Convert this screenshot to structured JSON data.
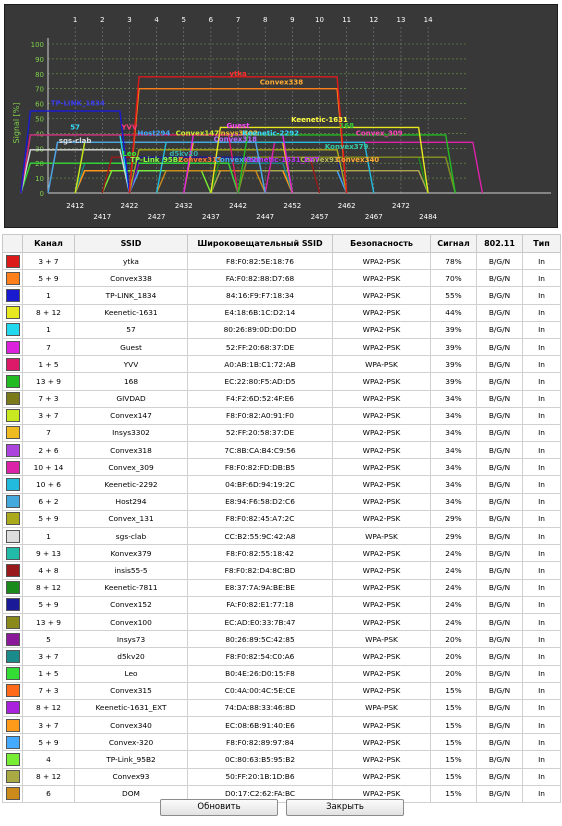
{
  "chart_data": {
    "type": "area",
    "ylabel": "Signal [%]",
    "ylim": [
      0,
      100
    ],
    "y_ticks": [
      0,
      10,
      20,
      30,
      40,
      50,
      60,
      70,
      80,
      90,
      100
    ],
    "top_channel_ticks": [
      1,
      2,
      3,
      4,
      5,
      6,
      7,
      8,
      9,
      10,
      11,
      12,
      13,
      14
    ],
    "bottom_freq_row1": [
      2412,
      2422,
      2432,
      2442,
      2452,
      2462,
      2472
    ],
    "bottom_freq_row2": [
      2417,
      2427,
      2437,
      2447,
      2457,
      2467,
      2484
    ],
    "grid": true,
    "series": [
      {
        "name": "ytka",
        "channel": 7,
        "span": 4,
        "signal": 78,
        "color": "#dd1a1a"
      },
      {
        "name": "Convex338",
        "channel": 7,
        "span": 4,
        "signal": 70,
        "color": "#ff7f1a"
      },
      {
        "name": "TP-LINK_1834",
        "channel": 1,
        "span": 2,
        "signal": 55,
        "color": "#1a1ad0"
      },
      {
        "name": "Keenetic-1631",
        "channel": 10,
        "span": 4,
        "signal": 44,
        "color": "#e8e820"
      },
      {
        "name": "57",
        "channel": 1,
        "span": 2,
        "signal": 39,
        "color": "#22d8ee"
      },
      {
        "name": "Guest",
        "channel": 7,
        "span": 2,
        "signal": 39,
        "color": "#dd22dd"
      },
      {
        "name": "YVV",
        "channel": 3,
        "span": 4,
        "signal": 39,
        "color": "#dd1a6a"
      },
      {
        "name": "168",
        "channel": 11,
        "span": 4,
        "signal": 39,
        "color": "#22bb22"
      },
      {
        "name": "GIVDAD",
        "channel": 5,
        "span": 4,
        "signal": 34,
        "color": "#7a7a1a"
      },
      {
        "name": "Convex147",
        "channel": 5,
        "span": 4,
        "signal": 34,
        "color": "#c8e820"
      },
      {
        "name": "Insys3302",
        "channel": 7,
        "span": 2,
        "signal": 34,
        "color": "#eebb20"
      },
      {
        "name": "Convex318",
        "channel": 4,
        "span": 4,
        "signal": 34,
        "color": "#aa44dd"
      },
      {
        "name": "Convex_309",
        "channel": 12,
        "span": 4,
        "signal": 34,
        "color": "#dd22aa"
      },
      {
        "name": "Keenetic-2292",
        "channel": 8,
        "span": 4,
        "signal": 34,
        "color": "#22bbdd"
      },
      {
        "name": "Host294",
        "channel": 4,
        "span": 4,
        "signal": 34,
        "color": "#44aadd"
      },
      {
        "name": "Convex_131",
        "channel": 7,
        "span": 4,
        "signal": 29,
        "color": "#aaaa1a"
      },
      {
        "name": "sgs-clab",
        "channel": 1,
        "span": 2,
        "signal": 29,
        "color": "#dddddd"
      },
      {
        "name": "Konvex379",
        "channel": 11,
        "span": 4,
        "signal": 24,
        "color": "#22bbaa"
      },
      {
        "name": "insis55-5",
        "channel": 6,
        "span": 4,
        "signal": 24,
        "color": "#991a1a"
      },
      {
        "name": "Keenetic-7811",
        "channel": 10,
        "span": 4,
        "signal": 24,
        "color": "#1a8a1a"
      },
      {
        "name": "Convex152",
        "channel": 7,
        "span": 4,
        "signal": 24,
        "color": "#1a1a99"
      },
      {
        "name": "Convex100",
        "channel": 11,
        "span": 4,
        "signal": 24,
        "color": "#8a8a1a"
      },
      {
        "name": "Insys73",
        "channel": 5,
        "span": 2,
        "signal": 20,
        "color": "#8a1a99"
      },
      {
        "name": "d5kv20",
        "channel": 5,
        "span": 4,
        "signal": 20,
        "color": "#1a8a8a"
      },
      {
        "name": "Leo",
        "channel": 3,
        "span": 4,
        "signal": 20,
        "color": "#33dd33"
      },
      {
        "name": "Convex315",
        "channel": 5,
        "span": 4,
        "signal": 15,
        "color": "#ff6a1a"
      },
      {
        "name": "Keenetic-1631_EXT",
        "channel": 10,
        "span": 4,
        "signal": 15,
        "color": "#aa22dd"
      },
      {
        "name": "Convex340",
        "channel": 5,
        "span": 4,
        "signal": 15,
        "color": "#ff9a1a"
      },
      {
        "name": "Convex-320",
        "channel": 7,
        "span": 4,
        "signal": 15,
        "color": "#44aaff"
      },
      {
        "name": "TP-Link_95B2",
        "channel": 4,
        "span": 2,
        "signal": 15,
        "color": "#77ee33"
      },
      {
        "name": "Convex93",
        "channel": 10,
        "span": 4,
        "signal": 15,
        "color": "#aaaa44"
      },
      {
        "name": "DOM",
        "channel": 6,
        "span": 2,
        "signal": 15,
        "color": "#cc8a1a"
      }
    ],
    "labels": [
      {
        "text": "ytka",
        "channel": 7,
        "signal": 78,
        "color": "#ff3030"
      },
      {
        "text": "Convex338",
        "channel": 8.6,
        "signal": 72,
        "color": "#ffaa33"
      },
      {
        "text": "TP-LINK_1834",
        "channel": 1.1,
        "signal": 58,
        "color": "#3a3aee"
      },
      {
        "text": "Keenetic-1631",
        "channel": 10,
        "signal": 47,
        "color": "#ffff44"
      },
      {
        "text": "57",
        "channel": 1,
        "signal": 42,
        "color": "#33ddff"
      },
      {
        "text": "Guest",
        "channel": 7,
        "signal": 43,
        "color": "#ff44ff"
      },
      {
        "text": "YVV",
        "channel": 3,
        "signal": 42,
        "color": "#ff3a7a"
      },
      {
        "text": "168",
        "channel": 11,
        "signal": 43,
        "color": "#33cc33"
      },
      {
        "text": "Host294",
        "channel": 3.9,
        "signal": 38,
        "color": "#44aaff"
      },
      {
        "text": "Convex147",
        "channel": 5.5,
        "signal": 38,
        "color": "#ccee33"
      },
      {
        "text": "Insys3302",
        "channel": 7,
        "signal": 38,
        "color": "#eebb33"
      },
      {
        "text": "Keenetic-2292",
        "channel": 8.2,
        "signal": 38,
        "color": "#33ddff"
      },
      {
        "text": "Convex_309",
        "channel": 12.2,
        "signal": 38,
        "color": "#ff44bb"
      },
      {
        "text": "Convex318",
        "channel": 6.9,
        "signal": 34,
        "color": "#bb66ff"
      },
      {
        "text": "sgs-clab",
        "channel": 1,
        "signal": 33,
        "color": "#dddddd"
      },
      {
        "text": "Konvex379",
        "channel": 11,
        "signal": 29,
        "color": "#33ccaa"
      },
      {
        "text": "Leo",
        "channel": 3,
        "signal": 24,
        "color": "#33ee33"
      },
      {
        "text": "d5kv20",
        "channel": 5,
        "signal": 24,
        "color": "#33aaaa"
      },
      {
        "text": "TP-Link_95B2",
        "channel": 4,
        "signal": 20,
        "color": "#88ff44"
      },
      {
        "text": "Convex315",
        "channel": 5.6,
        "signal": 20,
        "color": "#ff7733"
      },
      {
        "text": "Convex-320",
        "channel": 7,
        "signal": 20,
        "color": "#44aaff"
      },
      {
        "text": "Convex93",
        "channel": 10,
        "signal": 20,
        "color": "#bbbb55"
      },
      {
        "text": "Keenetic-1631_EXT",
        "channel": 8.6,
        "signal": 20,
        "color": "#bb33ff"
      },
      {
        "text": "Convex340",
        "channel": 11.4,
        "signal": 20,
        "color": "#ffaa33"
      }
    ]
  },
  "table": {
    "headers": {
      "channel": "Канал",
      "ssid": "SSID",
      "bssid": "Широковещательный SSID",
      "security": "Безопасность",
      "signal": "Сигнал",
      "standard": "802.11",
      "type": "Тип"
    },
    "rows": [
      {
        "color": "#dd1a1a",
        "channel": "3 + 7",
        "ssid": "ytka",
        "bssid": "F8:F0:82:5E:18:76",
        "security": "WPA2-PSK",
        "signal": "78%",
        "standard": "B/G/N",
        "type": "In"
      },
      {
        "color": "#ff7f1a",
        "channel": "5 + 9",
        "ssid": "Convex338",
        "bssid": "FA:F0:82:88:D7:68",
        "security": "WPA2-PSK",
        "signal": "70%",
        "standard": "B/G/N",
        "type": "In"
      },
      {
        "color": "#1a1ad0",
        "channel": "1",
        "ssid": "TP-LINK_1834",
        "bssid": "84:16:F9:F7:18:34",
        "security": "WPA2-PSK",
        "signal": "55%",
        "standard": "B/G/N",
        "type": "In"
      },
      {
        "color": "#e8e820",
        "channel": "8 + 12",
        "ssid": "Keenetic-1631",
        "bssid": "E4:18:6B:1C:D2:14",
        "security": "WPA2-PSK",
        "signal": "44%",
        "standard": "B/G/N",
        "type": "In"
      },
      {
        "color": "#22d8ee",
        "channel": "1",
        "ssid": "57",
        "bssid": "80:26:89:0D:D0:DD",
        "security": "WPA2-PSK",
        "signal": "39%",
        "standard": "B/G/N",
        "type": "In"
      },
      {
        "color": "#dd22dd",
        "channel": "7",
        "ssid": "Guest",
        "bssid": "52:FF:20:68:37:DE",
        "security": "WPA2-PSK",
        "signal": "39%",
        "standard": "B/G/N",
        "type": "In"
      },
      {
        "color": "#dd1a6a",
        "channel": "1 + 5",
        "ssid": "YVV",
        "bssid": "A0:AB:1B:C1:72:AB",
        "security": "WPA-PSK",
        "signal": "39%",
        "standard": "B/G/N",
        "type": "In"
      },
      {
        "color": "#22bb22",
        "channel": "13 + 9",
        "ssid": "168",
        "bssid": "EC:22:80:F5:AD:D5",
        "security": "WPA2-PSK",
        "signal": "39%",
        "standard": "B/G/N",
        "type": "In"
      },
      {
        "color": "#7a7a1a",
        "channel": "7 + 3",
        "ssid": "GIVDAD",
        "bssid": "F4:F2:6D:52:4F:E6",
        "security": "WPA2-PSK",
        "signal": "34%",
        "standard": "B/G/N",
        "type": "In"
      },
      {
        "color": "#c8e820",
        "channel": "3 + 7",
        "ssid": "Convex147",
        "bssid": "F8:F0:82:A0:91:F0",
        "security": "WPA2-PSK",
        "signal": "34%",
        "standard": "B/G/N",
        "type": "In"
      },
      {
        "color": "#eebb20",
        "channel": "7",
        "ssid": "Insys3302",
        "bssid": "52:FF:20:58:37:DE",
        "security": "WPA2-PSK",
        "signal": "34%",
        "standard": "B/G/N",
        "type": "In"
      },
      {
        "color": "#aa44dd",
        "channel": "2 + 6",
        "ssid": "Convex318",
        "bssid": "7C:8B:CA:B4:C9:56",
        "security": "WPA2-PSK",
        "signal": "34%",
        "standard": "B/G/N",
        "type": "In"
      },
      {
        "color": "#dd22aa",
        "channel": "10 + 14",
        "ssid": "Convex_309",
        "bssid": "F8:F0:82:FD:DB:B5",
        "security": "WPA2-PSK",
        "signal": "34%",
        "standard": "B/G/N",
        "type": "In"
      },
      {
        "color": "#22bbdd",
        "channel": "10 + 6",
        "ssid": "Keenetic-2292",
        "bssid": "04:BF:6D:94:19:2C",
        "security": "WPA2-PSK",
        "signal": "34%",
        "standard": "B/G/N",
        "type": "In"
      },
      {
        "color": "#44aadd",
        "channel": "6 + 2",
        "ssid": "Host294",
        "bssid": "E8:94:F6:58:D2:C6",
        "security": "WPA2-PSK",
        "signal": "34%",
        "standard": "B/G/N",
        "type": "In"
      },
      {
        "color": "#aaaa1a",
        "channel": "5 + 9",
        "ssid": "Convex_131",
        "bssid": "F8:F0:82:45:A7:2C",
        "security": "WPA2-PSK",
        "signal": "29%",
        "standard": "B/G/N",
        "type": "In"
      },
      {
        "color": "#dddddd",
        "channel": "1",
        "ssid": "sgs-clab",
        "bssid": "CC:B2:55:9C:42:A8",
        "security": "WPA-PSK",
        "signal": "29%",
        "standard": "B/G/N",
        "type": "In"
      },
      {
        "color": "#22bbaa",
        "channel": "9 + 13",
        "ssid": "Konvex379",
        "bssid": "F8:F0:82:55:18:42",
        "security": "WPA2-PSK",
        "signal": "24%",
        "standard": "B/G/N",
        "type": "In"
      },
      {
        "color": "#991a1a",
        "channel": "4 + 8",
        "ssid": "insis55-5",
        "bssid": "F8:F0:82:D4:8C:BD",
        "security": "WPA2-PSK",
        "signal": "24%",
        "standard": "B/G/N",
        "type": "In"
      },
      {
        "color": "#1a8a1a",
        "channel": "8 + 12",
        "ssid": "Keenetic-7811",
        "bssid": "E8:37:7A:9A:BE:BE",
        "security": "WPA2-PSK",
        "signal": "24%",
        "standard": "B/G/N",
        "type": "In"
      },
      {
        "color": "#1a1a99",
        "channel": "5 + 9",
        "ssid": "Convex152",
        "bssid": "FA:F0:82:E1:77:18",
        "security": "WPA2-PSK",
        "signal": "24%",
        "standard": "B/G/N",
        "type": "In"
      },
      {
        "color": "#8a8a1a",
        "channel": "13 + 9",
        "ssid": "Convex100",
        "bssid": "EC:AD:E0:33:7B:47",
        "security": "WPA2-PSK",
        "signal": "24%",
        "standard": "B/G/N",
        "type": "In"
      },
      {
        "color": "#8a1a99",
        "channel": "5",
        "ssid": "Insys73",
        "bssid": "80:26:89:5C:42:85",
        "security": "WPA-PSK",
        "signal": "20%",
        "standard": "B/G/N",
        "type": "In"
      },
      {
        "color": "#1a8a8a",
        "channel": "3 + 7",
        "ssid": "d5kv20",
        "bssid": "F8:F0:82:54:C0:A6",
        "security": "WPA2-PSK",
        "signal": "20%",
        "standard": "B/G/N",
        "type": "In"
      },
      {
        "color": "#33dd33",
        "channel": "1 + 5",
        "ssid": "Leo",
        "bssid": "B0:4E:26:D0:15:F8",
        "security": "WPA2-PSK",
        "signal": "20%",
        "standard": "B/G/N",
        "type": "In"
      },
      {
        "color": "#ff6a1a",
        "channel": "7 + 3",
        "ssid": "Convex315",
        "bssid": "C0:4A:00:4C:5E:CE",
        "security": "WPA2-PSK",
        "signal": "15%",
        "standard": "B/G/N",
        "type": "In"
      },
      {
        "color": "#aa22dd",
        "channel": "8 + 12",
        "ssid": "Keenetic-1631_EXT",
        "bssid": "74:DA:88:33:46:8D",
        "security": "WPA-PSK",
        "signal": "15%",
        "standard": "B/G/N",
        "type": "In"
      },
      {
        "color": "#ff9a1a",
        "channel": "3 + 7",
        "ssid": "Convex340",
        "bssid": "EC:08:6B:91:40:E6",
        "security": "WPA2-PSK",
        "signal": "15%",
        "standard": "B/G/N",
        "type": "In"
      },
      {
        "color": "#44aaff",
        "channel": "5 + 9",
        "ssid": "Convex-320",
        "bssid": "F8:F0:82:89:97:84",
        "security": "WPA2-PSK",
        "signal": "15%",
        "standard": "B/G/N",
        "type": "In"
      },
      {
        "color": "#77ee33",
        "channel": "4",
        "ssid": "TP-Link_95B2",
        "bssid": "0C:80:63:B5:95:B2",
        "security": "WPA2-PSK",
        "signal": "15%",
        "standard": "B/G/N",
        "type": "In"
      },
      {
        "color": "#aaaa44",
        "channel": "8 + 12",
        "ssid": "Convex93",
        "bssid": "50:FF:20:1B:1D:B6",
        "security": "WPA2-PSK",
        "signal": "15%",
        "standard": "B/G/N",
        "type": "In"
      },
      {
        "color": "#cc8a1a",
        "channel": "6",
        "ssid": "DOM",
        "bssid": "D0:17:C2:62:FA:BC",
        "security": "WPA2-PSK",
        "signal": "15%",
        "standard": "B/G/N",
        "type": "In"
      }
    ]
  },
  "buttons": {
    "refresh": "Обновить",
    "close": "Закрыть"
  }
}
